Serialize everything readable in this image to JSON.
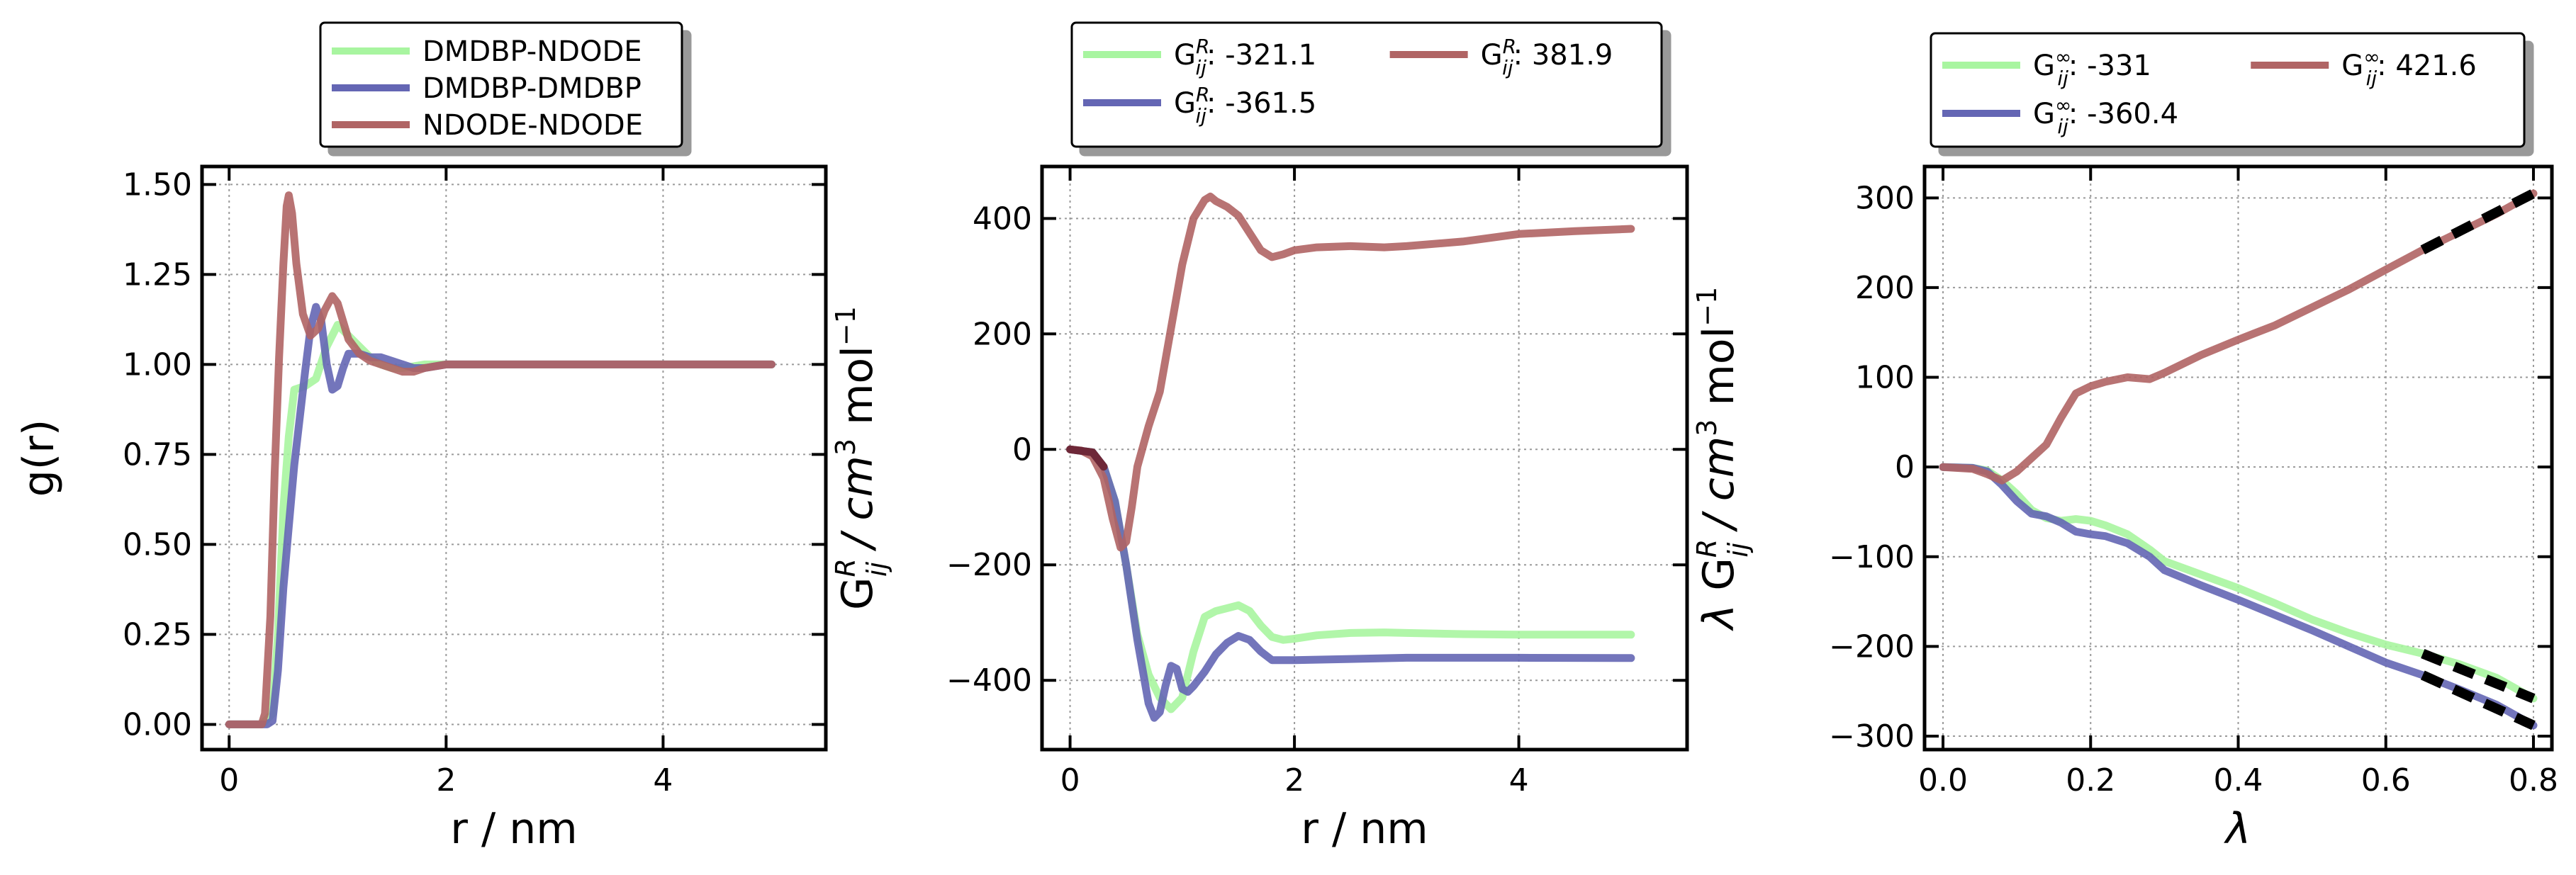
{
  "chart_data": [
    {
      "type": "line",
      "xlabel": "r / nm",
      "ylabel": "g(r)",
      "xlim": [
        -0.25,
        5.5
      ],
      "ylim": [
        -0.07,
        1.55
      ],
      "xticks": [
        0,
        2,
        4
      ],
      "yticks": [
        0.0,
        0.25,
        0.5,
        0.75,
        1.0,
        1.25,
        1.5
      ],
      "ytick_decimals": 2,
      "grid": true,
      "legend_placement": "top-center",
      "legend_columns": 1,
      "series": [
        {
          "name": "DMDBP-NDODE",
          "color": "#a8f5a0",
          "x": [
            0,
            0.3,
            0.4,
            0.45,
            0.5,
            0.55,
            0.6,
            0.7,
            0.8,
            0.9,
            1.0,
            1.1,
            1.2,
            1.3,
            1.4,
            1.5,
            1.6,
            1.7,
            1.8,
            2.0,
            2.5,
            3.0,
            4.0,
            5.0
          ],
          "y": [
            0,
            0,
            0.03,
            0.25,
            0.6,
            0.8,
            0.93,
            0.94,
            0.96,
            1.05,
            1.11,
            1.08,
            1.05,
            1.02,
            1.0,
            0.99,
            0.99,
            0.995,
            1.0,
            1.0,
            1.0,
            1.0,
            1.0,
            1.0
          ]
        },
        {
          "name": "DMDBP-DMDBP",
          "color": "#6466b4",
          "x": [
            0,
            0.35,
            0.4,
            0.45,
            0.5,
            0.55,
            0.6,
            0.7,
            0.75,
            0.8,
            0.85,
            0.9,
            0.95,
            1.0,
            1.05,
            1.1,
            1.2,
            1.3,
            1.4,
            1.5,
            1.6,
            1.7,
            1.8,
            2.0,
            2.5,
            3.0,
            4.0,
            5.0
          ],
          "y": [
            0,
            0,
            0.01,
            0.15,
            0.38,
            0.55,
            0.72,
            0.98,
            1.1,
            1.16,
            1.12,
            1.0,
            0.93,
            0.94,
            0.99,
            1.03,
            1.03,
            1.02,
            1.02,
            1.01,
            1.0,
            0.99,
            0.99,
            1.0,
            1.0,
            1.0,
            1.0,
            1.0
          ]
        },
        {
          "name": "NDODE-NDODE",
          "color": "#b06464",
          "x": [
            0,
            0.3,
            0.33,
            0.38,
            0.42,
            0.46,
            0.5,
            0.53,
            0.55,
            0.58,
            0.62,
            0.68,
            0.75,
            0.82,
            0.88,
            0.95,
            1.0,
            1.05,
            1.1,
            1.2,
            1.3,
            1.4,
            1.5,
            1.6,
            1.7,
            1.8,
            2.0,
            2.5,
            3.0,
            4.0,
            5.0
          ],
          "y": [
            0,
            0,
            0.03,
            0.3,
            0.7,
            1.02,
            1.28,
            1.44,
            1.47,
            1.42,
            1.28,
            1.14,
            1.08,
            1.1,
            1.15,
            1.19,
            1.17,
            1.12,
            1.07,
            1.03,
            1.01,
            1.0,
            0.99,
            0.98,
            0.98,
            0.99,
            1.0,
            1.0,
            1.0,
            1.0,
            1.0
          ]
        }
      ]
    },
    {
      "type": "line",
      "xlabel": "r / nm",
      "ylabel": "G_ij^R / cm^3 mol^-1",
      "xlim": [
        -0.25,
        5.5
      ],
      "ylim": [
        -520,
        490
      ],
      "xticks": [
        0,
        2,
        4
      ],
      "yticks": [
        -400,
        -200,
        0,
        200,
        400
      ],
      "ytick_decimals": 0,
      "grid": true,
      "legend_placement": "top-center",
      "legend_columns": 2,
      "series": [
        {
          "name": "-321.1",
          "color": "#a8f5a0",
          "x": [
            0,
            0.2,
            0.3,
            0.4,
            0.5,
            0.6,
            0.7,
            0.8,
            0.9,
            1.0,
            1.1,
            1.2,
            1.3,
            1.4,
            1.5,
            1.6,
            1.7,
            1.8,
            1.9,
            2.0,
            2.2,
            2.5,
            2.8,
            3.0,
            3.5,
            4.0,
            4.5,
            5.0
          ],
          "y": [
            0,
            -5,
            -30,
            -90,
            -200,
            -320,
            -390,
            -430,
            -450,
            -430,
            -350,
            -290,
            -280,
            -275,
            -270,
            -280,
            -305,
            -325,
            -330,
            -328,
            -322,
            -318,
            -317,
            -318,
            -320,
            -321,
            -321,
            -321
          ]
        },
        {
          "name": "-361.5",
          "color": "#6466b4",
          "x": [
            0,
            0.2,
            0.3,
            0.4,
            0.5,
            0.6,
            0.7,
            0.75,
            0.8,
            0.85,
            0.9,
            0.95,
            1.0,
            1.05,
            1.1,
            1.2,
            1.3,
            1.4,
            1.5,
            1.6,
            1.7,
            1.8,
            2.0,
            2.5,
            3.0,
            4.0,
            5.0
          ],
          "y": [
            0,
            -5,
            -30,
            -90,
            -200,
            -330,
            -440,
            -465,
            -455,
            -410,
            -375,
            -380,
            -415,
            -420,
            -410,
            -385,
            -355,
            -335,
            -323,
            -330,
            -350,
            -365,
            -365,
            -363,
            -361,
            -361,
            -361.5
          ]
        },
        {
          "name": "381.9",
          "color": "#b06464",
          "x": [
            0,
            0.1,
            0.2,
            0.3,
            0.38,
            0.45,
            0.5,
            0.55,
            0.6,
            0.7,
            0.8,
            0.9,
            1.0,
            1.1,
            1.2,
            1.25,
            1.3,
            1.4,
            1.5,
            1.6,
            1.7,
            1.8,
            1.9,
            2.0,
            2.2,
            2.5,
            2.8,
            3.0,
            3.5,
            4.0,
            4.5,
            5.0
          ],
          "y": [
            0,
            -2,
            -12,
            -50,
            -120,
            -170,
            -160,
            -100,
            -30,
            40,
            100,
            210,
            320,
            400,
            432,
            438,
            430,
            420,
            405,
            375,
            345,
            333,
            338,
            345,
            350,
            352,
            350,
            352,
            360,
            373,
            378,
            382
          ]
        }
      ],
      "overlap_color": "#6e2838"
    },
    {
      "type": "line",
      "xlabel": "λ",
      "ylabel": "λ G_ij^R / cm^3 mol^-1",
      "xlim": [
        -0.025,
        0.825
      ],
      "ylim": [
        -315,
        335
      ],
      "xticks": [
        0.0,
        0.2,
        0.4,
        0.6,
        0.8
      ],
      "yticks": [
        -300,
        -200,
        -100,
        0,
        100,
        200,
        300
      ],
      "ytick_decimals": 1,
      "ytick_labels": [
        "−300",
        "−200",
        "−100",
        "0",
        "100",
        "200",
        "300"
      ],
      "xtick_labels": [
        "0.0",
        "0.2",
        "0.4",
        "0.6",
        "0.8"
      ],
      "grid": true,
      "legend_placement": "top-center",
      "legend_columns": 2,
      "series": [
        {
          "name": "-331",
          "color": "#a8f5a0",
          "x": [
            0,
            0.04,
            0.06,
            0.08,
            0.1,
            0.12,
            0.14,
            0.16,
            0.18,
            0.2,
            0.22,
            0.25,
            0.28,
            0.3,
            0.35,
            0.4,
            0.45,
            0.5,
            0.55,
            0.6,
            0.65,
            0.7,
            0.75,
            0.8
          ],
          "y": [
            0,
            -1,
            -4,
            -15,
            -30,
            -48,
            -57,
            -60,
            -58,
            -60,
            -65,
            -75,
            -92,
            -105,
            -120,
            -135,
            -152,
            -170,
            -185,
            -198,
            -208,
            -220,
            -235,
            -258
          ]
        },
        {
          "name": "-360.4",
          "color": "#6466b4",
          "x": [
            0,
            0.04,
            0.06,
            0.08,
            0.1,
            0.12,
            0.14,
            0.16,
            0.18,
            0.2,
            0.22,
            0.25,
            0.28,
            0.3,
            0.35,
            0.4,
            0.45,
            0.5,
            0.55,
            0.6,
            0.65,
            0.7,
            0.75,
            0.8
          ],
          "y": [
            0,
            -1,
            -5,
            -20,
            -38,
            -52,
            -55,
            -62,
            -72,
            -75,
            -77,
            -85,
            -100,
            -115,
            -132,
            -148,
            -165,
            -182,
            -200,
            -218,
            -232,
            -248,
            -265,
            -288
          ]
        },
        {
          "name": "421.6",
          "color": "#b06464",
          "x": [
            0,
            0.04,
            0.06,
            0.08,
            0.1,
            0.12,
            0.14,
            0.16,
            0.18,
            0.2,
            0.22,
            0.25,
            0.28,
            0.3,
            0.35,
            0.4,
            0.45,
            0.5,
            0.55,
            0.6,
            0.65,
            0.7,
            0.75,
            0.8
          ],
          "y": [
            0,
            -2,
            -8,
            -15,
            -5,
            10,
            25,
            55,
            82,
            90,
            95,
            100,
            98,
            105,
            125,
            142,
            158,
            178,
            198,
            220,
            242,
            262,
            282,
            305
          ]
        }
      ],
      "fits": [
        {
          "x": [
            0.65,
            0.8
          ],
          "y": [
            -208,
            -258
          ]
        },
        {
          "x": [
            0.65,
            0.8
          ],
          "y": [
            -232,
            -288
          ]
        },
        {
          "x": [
            0.65,
            0.8
          ],
          "y": [
            242,
            305
          ]
        }
      ]
    }
  ]
}
